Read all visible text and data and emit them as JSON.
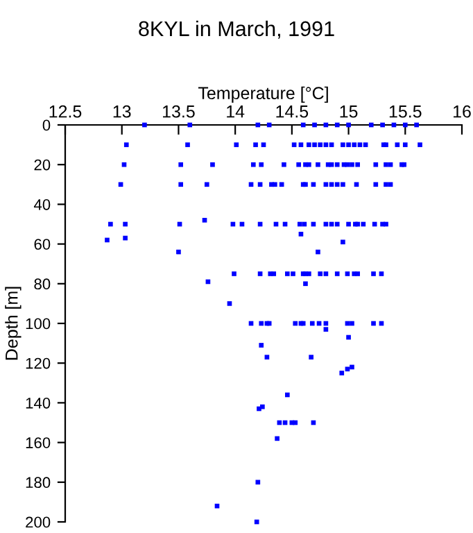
{
  "chart_data": {
    "type": "scatter",
    "title": "8KYL in March, 1991",
    "xlabel": "Temperature [°C]",
    "ylabel": "Depth [m]",
    "xlim": [
      12.5,
      16
    ],
    "xticks": [
      12.5,
      13,
      13.5,
      14,
      14.5,
      15,
      15.5,
      16
    ],
    "ylim": [
      200,
      0
    ],
    "yticks": [
      0,
      20,
      40,
      60,
      80,
      100,
      120,
      140,
      160,
      180,
      200
    ],
    "marker": "square",
    "grid": false,
    "series": [
      {
        "color": "#0000ff",
        "x": [
          13.2,
          13.6,
          14.2,
          14.3,
          14.6,
          14.7,
          14.8,
          14.9,
          15.0,
          15.2,
          15.3,
          15.4,
          15.5,
          15.6,
          13.04,
          13.58,
          14.01,
          14.18,
          14.25,
          14.52,
          14.58,
          14.65,
          14.7,
          14.75,
          14.8,
          14.85,
          14.95,
          15.0,
          15.05,
          15.1,
          15.15,
          15.31,
          15.33,
          15.43,
          15.5,
          15.63,
          13.02,
          13.52,
          13.8,
          14.16,
          14.23,
          14.43,
          14.56,
          14.62,
          14.65,
          14.73,
          14.82,
          14.85,
          14.9,
          14.96,
          14.99,
          15.03,
          15.08,
          15.24,
          15.33,
          15.37,
          15.47,
          15.49,
          12.99,
          13.52,
          13.75,
          14.14,
          14.22,
          14.32,
          14.35,
          14.41,
          14.6,
          14.62,
          14.69,
          14.8,
          14.85,
          14.9,
          14.95,
          15.07,
          15.24,
          15.33,
          15.37,
          12.9,
          13.03,
          13.51,
          13.73,
          13.98,
          14.06,
          14.22,
          14.36,
          14.44,
          14.57,
          14.61,
          14.69,
          14.8,
          14.85,
          14.9,
          15.0,
          15.06,
          15.08,
          15.13,
          15.23,
          15.3,
          15.33,
          12.87,
          13.03,
          14.58,
          14.95,
          13.5,
          14.73,
          13.99,
          14.22,
          14.31,
          14.34,
          14.46,
          14.51,
          14.6,
          14.62,
          14.65,
          14.75,
          14.8,
          14.9,
          14.99,
          15.05,
          15.08,
          15.22,
          15.29,
          13.76,
          14.62,
          13.95,
          14.14,
          14.23,
          14.28,
          14.3,
          14.53,
          14.58,
          14.6,
          14.68,
          14.74,
          14.8,
          14.99,
          15.03,
          15.22,
          15.29,
          14.8,
          15.0,
          14.23,
          14.28,
          14.67,
          15.03,
          14.99,
          14.94,
          14.46,
          14.24,
          14.21,
          14.39,
          14.44,
          14.5,
          14.53,
          14.69,
          14.37,
          14.2,
          13.84,
          14.19
        ],
        "values": [
          0,
          0,
          0,
          0,
          0,
          0,
          0,
          0,
          0,
          0,
          0,
          0,
          0,
          0,
          10,
          10,
          10,
          10,
          10,
          10,
          10,
          10,
          10,
          10,
          10,
          10,
          10,
          10,
          10,
          10,
          10,
          10,
          10,
          10,
          10,
          10,
          20,
          20,
          20,
          20,
          20,
          20,
          20,
          20,
          20,
          20,
          20,
          20,
          20,
          20,
          20,
          20,
          20,
          20,
          20,
          20,
          20,
          20,
          30,
          30,
          30,
          30,
          30,
          30,
          30,
          30,
          30,
          30,
          30,
          30,
          30,
          30,
          30,
          30,
          30,
          30,
          30,
          50,
          50,
          50,
          48,
          50,
          50,
          50,
          50,
          50,
          50,
          50,
          50,
          50,
          50,
          50,
          50,
          50,
          50,
          50,
          50,
          50,
          50,
          58,
          57,
          55,
          59,
          64,
          64,
          75,
          75,
          75,
          75,
          75,
          75,
          75,
          75,
          75,
          75,
          75,
          75,
          75,
          75,
          75,
          75,
          75,
          79,
          80,
          90,
          100,
          100,
          100,
          100,
          100,
          100,
          100,
          100,
          100,
          100,
          100,
          100,
          100,
          100,
          103,
          107,
          111,
          117,
          117,
          122,
          123,
          125,
          136,
          142,
          143,
          150,
          150,
          150,
          150,
          150,
          158,
          180,
          192,
          200
        ]
      }
    ]
  }
}
